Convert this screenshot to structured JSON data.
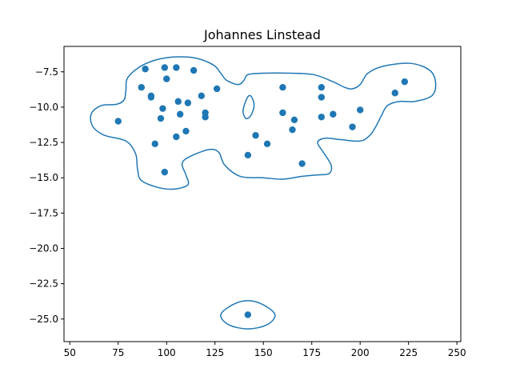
{
  "chart_data": {
    "type": "scatter",
    "title": "Johannes Linstead",
    "xlabel": "",
    "ylabel": "",
    "xlim": [
      47,
      252
    ],
    "ylim": [
      -26.6,
      -5.7
    ],
    "x_ticks": [
      50,
      75,
      100,
      125,
      150,
      175,
      200,
      225,
      250
    ],
    "y_ticks": [
      -7.5,
      -10.0,
      -12.5,
      -15.0,
      -17.5,
      -20.0,
      -22.5,
      -25.0
    ],
    "x_tick_labels": [
      "50",
      "75",
      "100",
      "125",
      "150",
      "175",
      "200",
      "225",
      "250"
    ],
    "y_tick_labels": [
      "−7.5",
      "−10.0",
      "−12.5",
      "−15.0",
      "−17.5",
      "−20.0",
      "−22.5",
      "−25.0"
    ],
    "grid": false,
    "legend": "none",
    "colors": {
      "points": "#1f77b4",
      "contour": "#1f77b4",
      "axes": "#000000",
      "background": "#ffffff"
    },
    "points": [
      {
        "x": 89,
        "y": -7.3
      },
      {
        "x": 99,
        "y": -7.2
      },
      {
        "x": 105,
        "y": -7.2
      },
      {
        "x": 114,
        "y": -7.4
      },
      {
        "x": 100,
        "y": -8.0
      },
      {
        "x": 87,
        "y": -8.6
      },
      {
        "x": 92,
        "y": -9.2
      },
      {
        "x": 92,
        "y": -9.3
      },
      {
        "x": 98,
        "y": -10.1
      },
      {
        "x": 106,
        "y": -9.6
      },
      {
        "x": 111,
        "y": -9.7
      },
      {
        "x": 118,
        "y": -9.2
      },
      {
        "x": 126,
        "y": -8.7
      },
      {
        "x": 107,
        "y": -10.5
      },
      {
        "x": 97,
        "y": -10.8
      },
      {
        "x": 120,
        "y": -10.4
      },
      {
        "x": 120,
        "y": -10.7
      },
      {
        "x": 75,
        "y": -11.0
      },
      {
        "x": 110,
        "y": -11.7
      },
      {
        "x": 105,
        "y": -12.1
      },
      {
        "x": 94,
        "y": -12.6
      },
      {
        "x": 99,
        "y": -14.6
      },
      {
        "x": 160,
        "y": -8.6
      },
      {
        "x": 180,
        "y": -8.6
      },
      {
        "x": 180,
        "y": -9.3
      },
      {
        "x": 160,
        "y": -10.4
      },
      {
        "x": 166,
        "y": -10.9
      },
      {
        "x": 180,
        "y": -10.7
      },
      {
        "x": 186,
        "y": -10.5
      },
      {
        "x": 165,
        "y": -11.6
      },
      {
        "x": 146,
        "y": -12.0
      },
      {
        "x": 152,
        "y": -12.6
      },
      {
        "x": 142,
        "y": -13.4
      },
      {
        "x": 170,
        "y": -14.0
      },
      {
        "x": 200,
        "y": -10.2
      },
      {
        "x": 196,
        "y": -11.4
      },
      {
        "x": 218,
        "y": -9.0
      },
      {
        "x": 223,
        "y": -8.2
      },
      {
        "x": 142,
        "y": -24.7
      }
    ],
    "contours": [
      [
        [
          88,
          -7.0
        ],
        [
          100,
          -6.5
        ],
        [
          114,
          -6.5
        ],
        [
          124,
          -7.0
        ],
        [
          128,
          -7.6
        ],
        [
          131,
          -8.1
        ],
        [
          137,
          -8.4
        ],
        [
          140,
          -8.1
        ],
        [
          142,
          -7.7
        ],
        [
          150,
          -7.6
        ],
        [
          164,
          -7.6
        ],
        [
          176,
          -7.7
        ],
        [
          186,
          -8.2
        ],
        [
          192,
          -8.6
        ],
        [
          196,
          -8.7
        ],
        [
          200,
          -8.4
        ],
        [
          204,
          -7.6
        ],
        [
          212,
          -7.1
        ],
        [
          226,
          -6.9
        ],
        [
          236,
          -7.4
        ],
        [
          239,
          -8.3
        ],
        [
          237,
          -9.2
        ],
        [
          228,
          -9.6
        ],
        [
          220,
          -9.6
        ],
        [
          214,
          -9.9
        ],
        [
          211,
          -10.6
        ],
        [
          208,
          -11.4
        ],
        [
          205,
          -12.0
        ],
        [
          200,
          -12.4
        ],
        [
          190,
          -12.3
        ],
        [
          182,
          -12.2
        ],
        [
          178,
          -12.5
        ],
        [
          181,
          -13.2
        ],
        [
          185,
          -14.1
        ],
        [
          184,
          -14.7
        ],
        [
          178,
          -14.8
        ],
        [
          170,
          -14.9
        ],
        [
          160,
          -15.1
        ],
        [
          150,
          -15.0
        ],
        [
          138,
          -14.9
        ],
        [
          130,
          -14.1
        ],
        [
          127,
          -13.2
        ],
        [
          122,
          -13.0
        ],
        [
          112,
          -13.5
        ],
        [
          108,
          -14.0
        ],
        [
          110,
          -14.8
        ],
        [
          111,
          -15.5
        ],
        [
          104,
          -15.8
        ],
        [
          96,
          -15.7
        ],
        [
          87,
          -15.2
        ],
        [
          85,
          -14.4
        ],
        [
          84,
          -13.3
        ],
        [
          79,
          -12.4
        ],
        [
          68,
          -12.0
        ],
        [
          62,
          -11.4
        ],
        [
          61,
          -10.5
        ],
        [
          66,
          -9.9
        ],
        [
          74,
          -9.8
        ],
        [
          78,
          -9.5
        ],
        [
          79,
          -8.8
        ],
        [
          80,
          -7.9
        ]
      ],
      [
        [
          144,
          -9.3
        ],
        [
          145.2,
          -9.9
        ],
        [
          143.5,
          -10.6
        ],
        [
          141.0,
          -10.8
        ],
        [
          139.5,
          -10.3
        ],
        [
          140.8,
          -9.6
        ],
        [
          142.5,
          -9.2
        ]
      ],
      [
        [
          142,
          -23.7
        ],
        [
          150,
          -24.0
        ],
        [
          156,
          -24.7
        ],
        [
          152,
          -25.4
        ],
        [
          142,
          -25.7
        ],
        [
          132,
          -25.4
        ],
        [
          128,
          -24.7
        ],
        [
          134,
          -24.0
        ]
      ]
    ]
  }
}
